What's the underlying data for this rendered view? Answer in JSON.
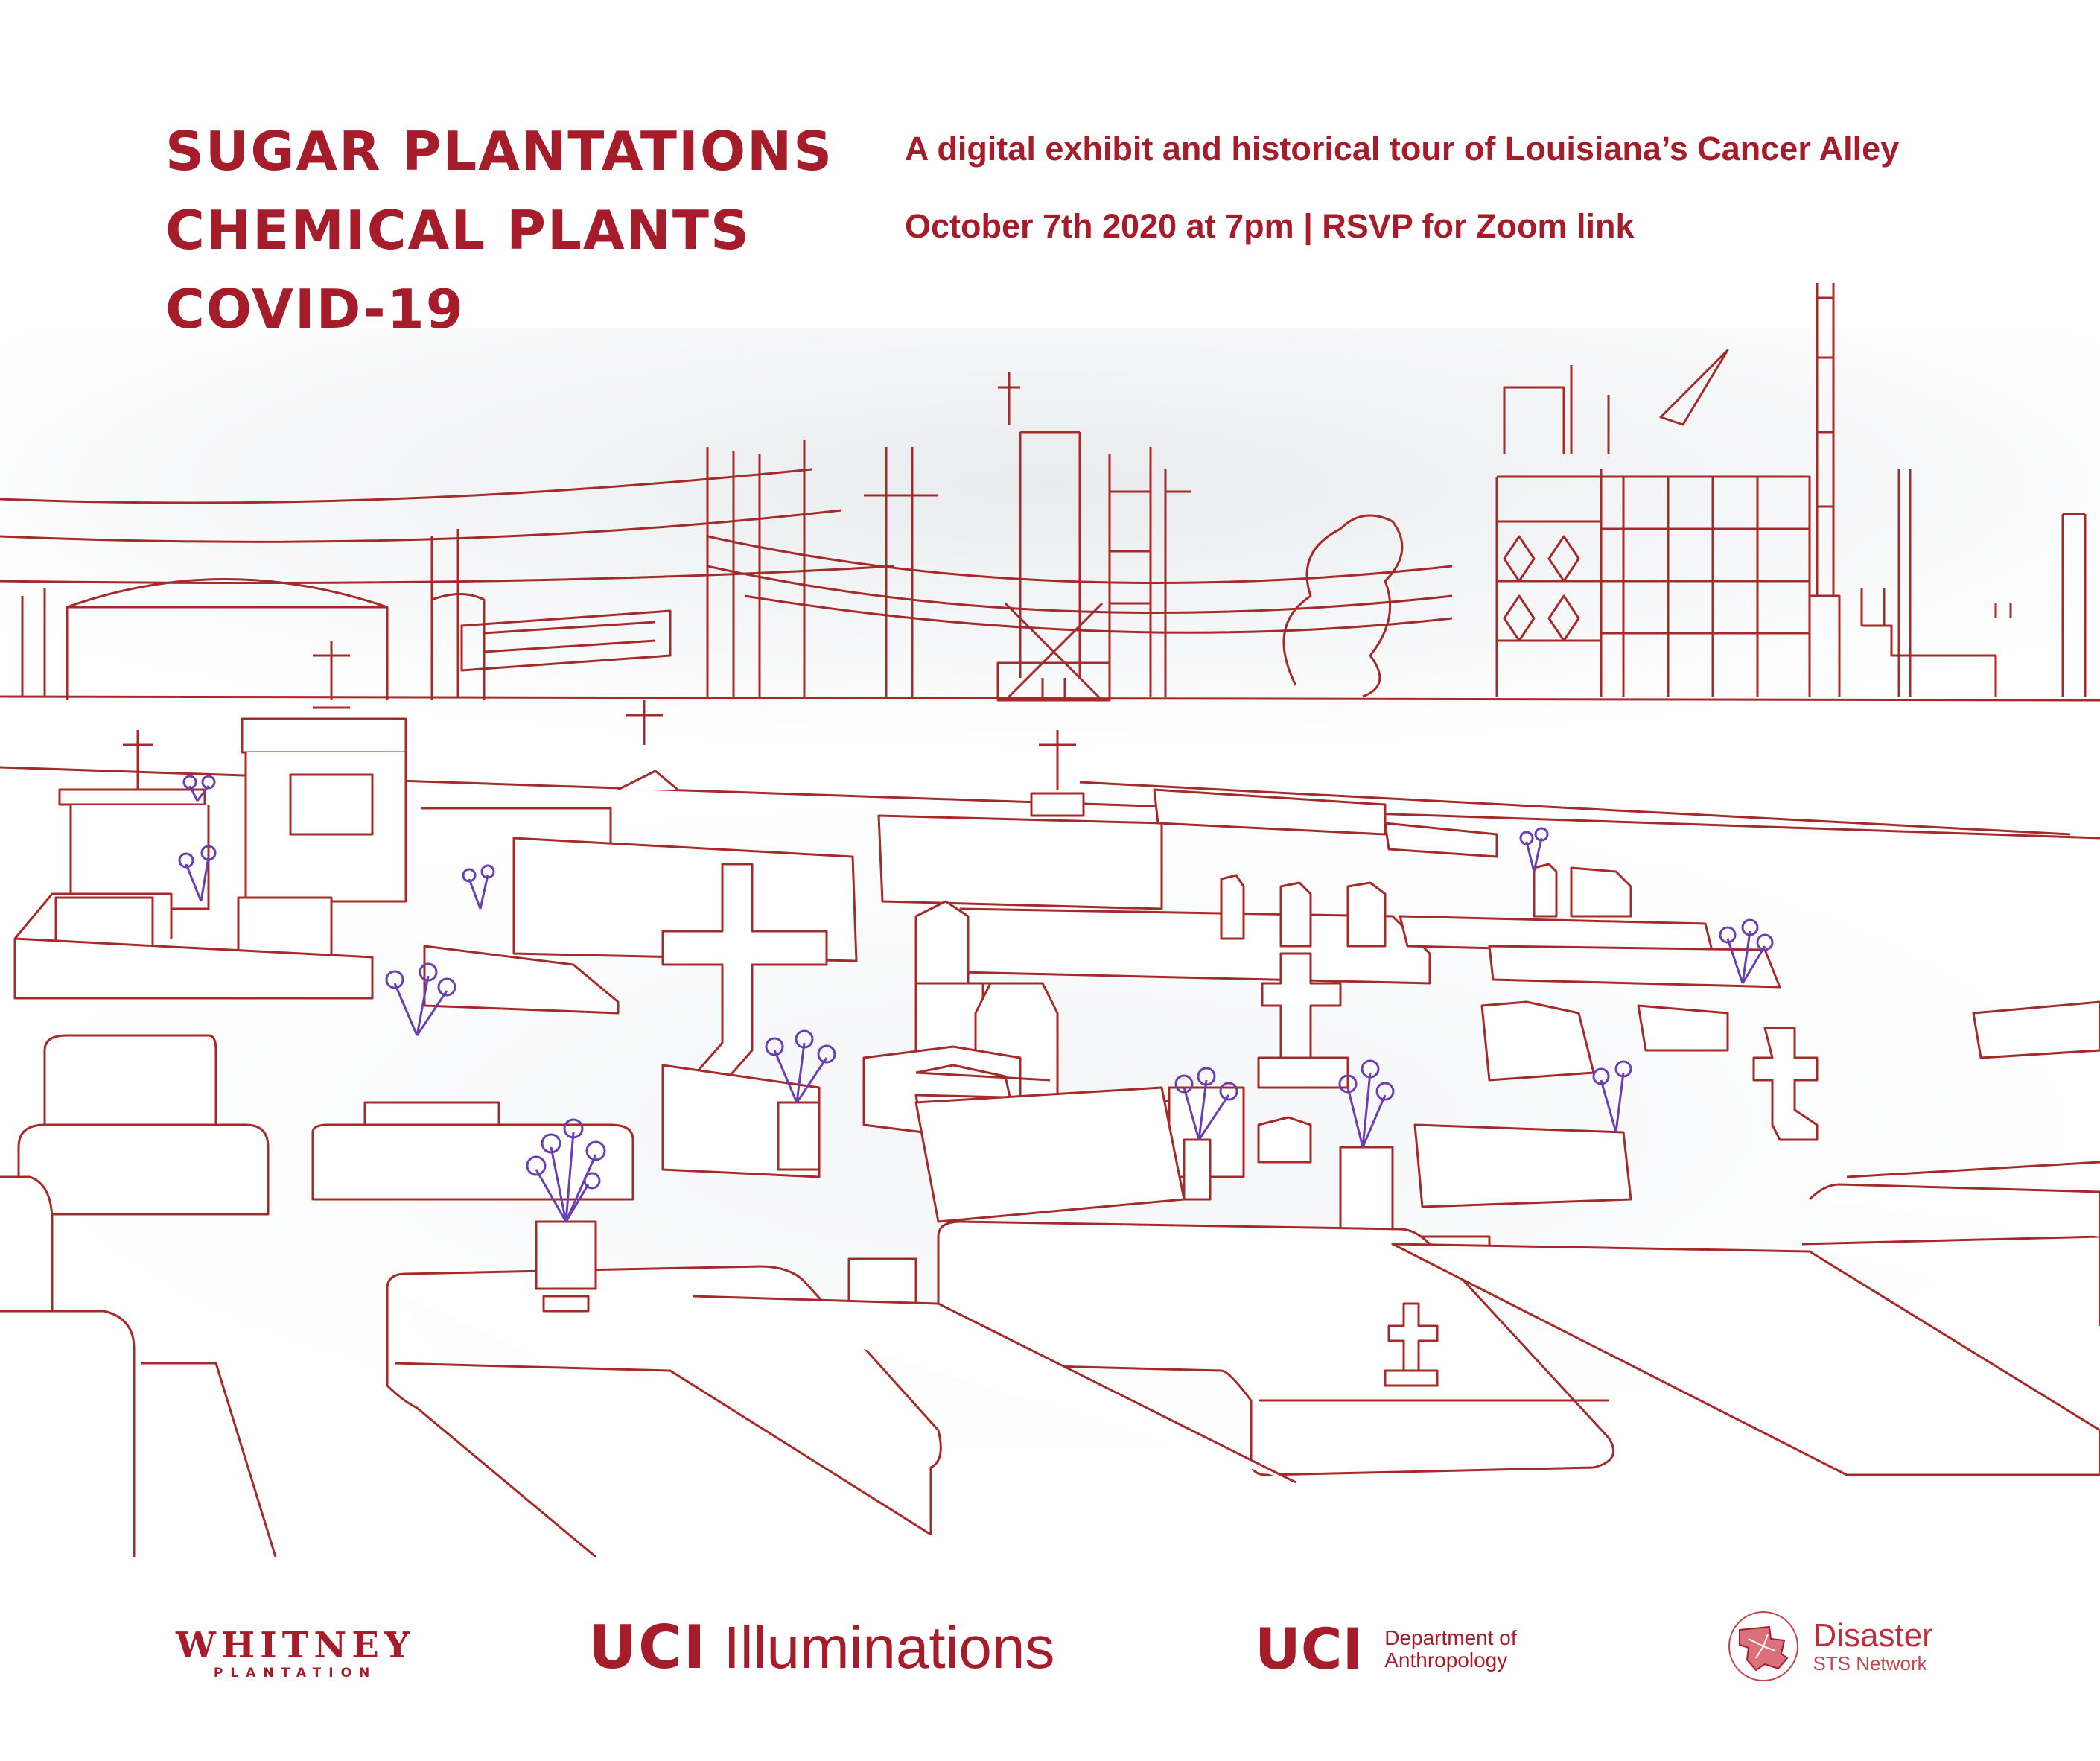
{
  "title": {
    "line1": "SUGAR PLANTATIONS",
    "line2": "CHEMICAL PLANTS",
    "line3": "COVID-19"
  },
  "subtitle": {
    "description": "A digital exhibit and historical tour of Louisiana’s Cancer Alley",
    "event": "October 7th 2020 at 7pm | RSVP for Zoom link"
  },
  "colors": {
    "accent": "#a51d2a",
    "line": "#a52a2a",
    "flowers": "#6a3fb0",
    "background": "#ffffff"
  },
  "logos": {
    "whitney": {
      "main": "WHITNEY",
      "sub": "PLANTATION"
    },
    "illuminations": {
      "uci": "UCI",
      "rest": "Illuminations"
    },
    "anthropology": {
      "uci": "UCI",
      "line1": "Department of",
      "line2": "Anthropology"
    },
    "disaster": {
      "line1": "Disaster",
      "line2": "STS Network",
      "icon": "louisiana-network-icon"
    }
  }
}
